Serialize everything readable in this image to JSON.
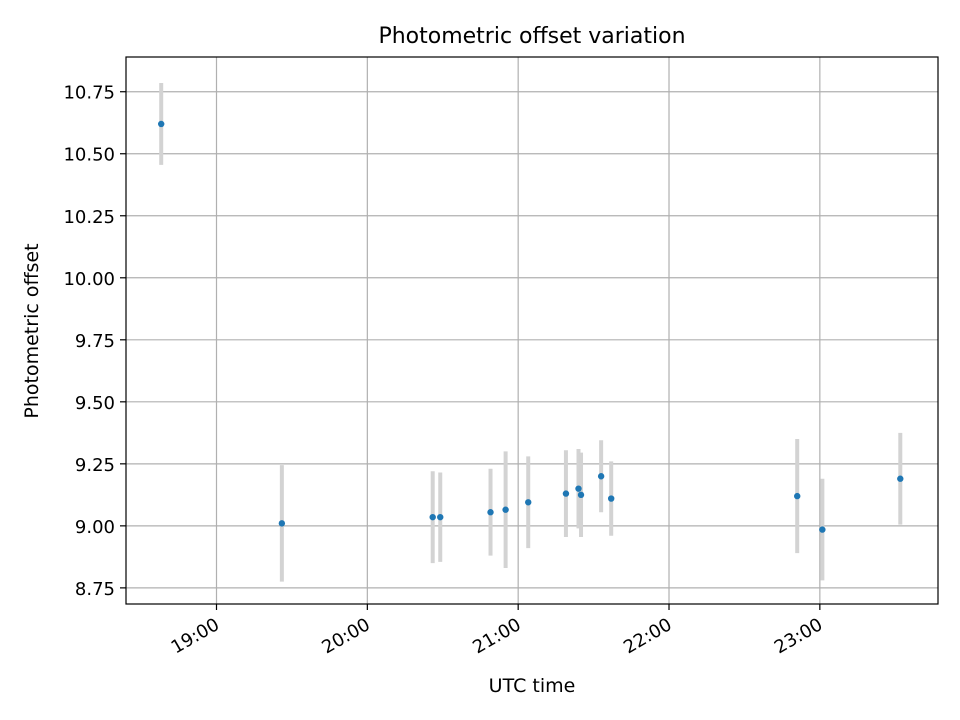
{
  "chart_data": {
    "type": "scatter",
    "title": "Photometric offset variation",
    "xlabel": "UTC time",
    "ylabel": "Photometric offset",
    "x_axis": {
      "kind": "time",
      "range": [
        "18:24",
        "23:47"
      ],
      "ticks": [
        "19:00",
        "20:00",
        "21:00",
        "22:00",
        "23:00"
      ]
    },
    "y_axis": {
      "range": [
        8.685,
        10.89
      ],
      "ticks": [
        8.75,
        9.0,
        9.25,
        9.5,
        9.75,
        10.0,
        10.25,
        10.5,
        10.75
      ],
      "tick_labels": [
        "8.75",
        "9.00",
        "9.25",
        "9.50",
        "9.75",
        "10.00",
        "10.25",
        "10.50",
        "10.75"
      ]
    },
    "grid": true,
    "series": [
      {
        "marker_color": "#1f77b4",
        "errorbar_color": "#d3d3d3",
        "points": [
          {
            "time": "18:38",
            "y": 10.62,
            "yerr": 0.165
          },
          {
            "time": "19:26",
            "y": 9.01,
            "yerr": 0.235
          },
          {
            "time": "20:26",
            "y": 9.035,
            "yerr": 0.185
          },
          {
            "time": "20:29",
            "y": 9.035,
            "yerr": 0.18
          },
          {
            "time": "20:49",
            "y": 9.055,
            "yerr": 0.175
          },
          {
            "time": "20:55",
            "y": 9.065,
            "yerr": 0.235
          },
          {
            "time": "21:04",
            "y": 9.095,
            "yerr": 0.185
          },
          {
            "time": "21:19",
            "y": 9.13,
            "yerr": 0.175
          },
          {
            "time": "21:24",
            "y": 9.15,
            "yerr": 0.16
          },
          {
            "time": "21:25",
            "y": 9.125,
            "yerr": 0.17
          },
          {
            "time": "21:33",
            "y": 9.2,
            "yerr": 0.145
          },
          {
            "time": "21:37",
            "y": 9.11,
            "yerr": 0.15
          },
          {
            "time": "22:51",
            "y": 9.12,
            "yerr": 0.23
          },
          {
            "time": "23:01",
            "y": 8.985,
            "yerr": 0.205
          },
          {
            "time": "23:32",
            "y": 9.19,
            "yerr": 0.185
          }
        ]
      }
    ]
  }
}
